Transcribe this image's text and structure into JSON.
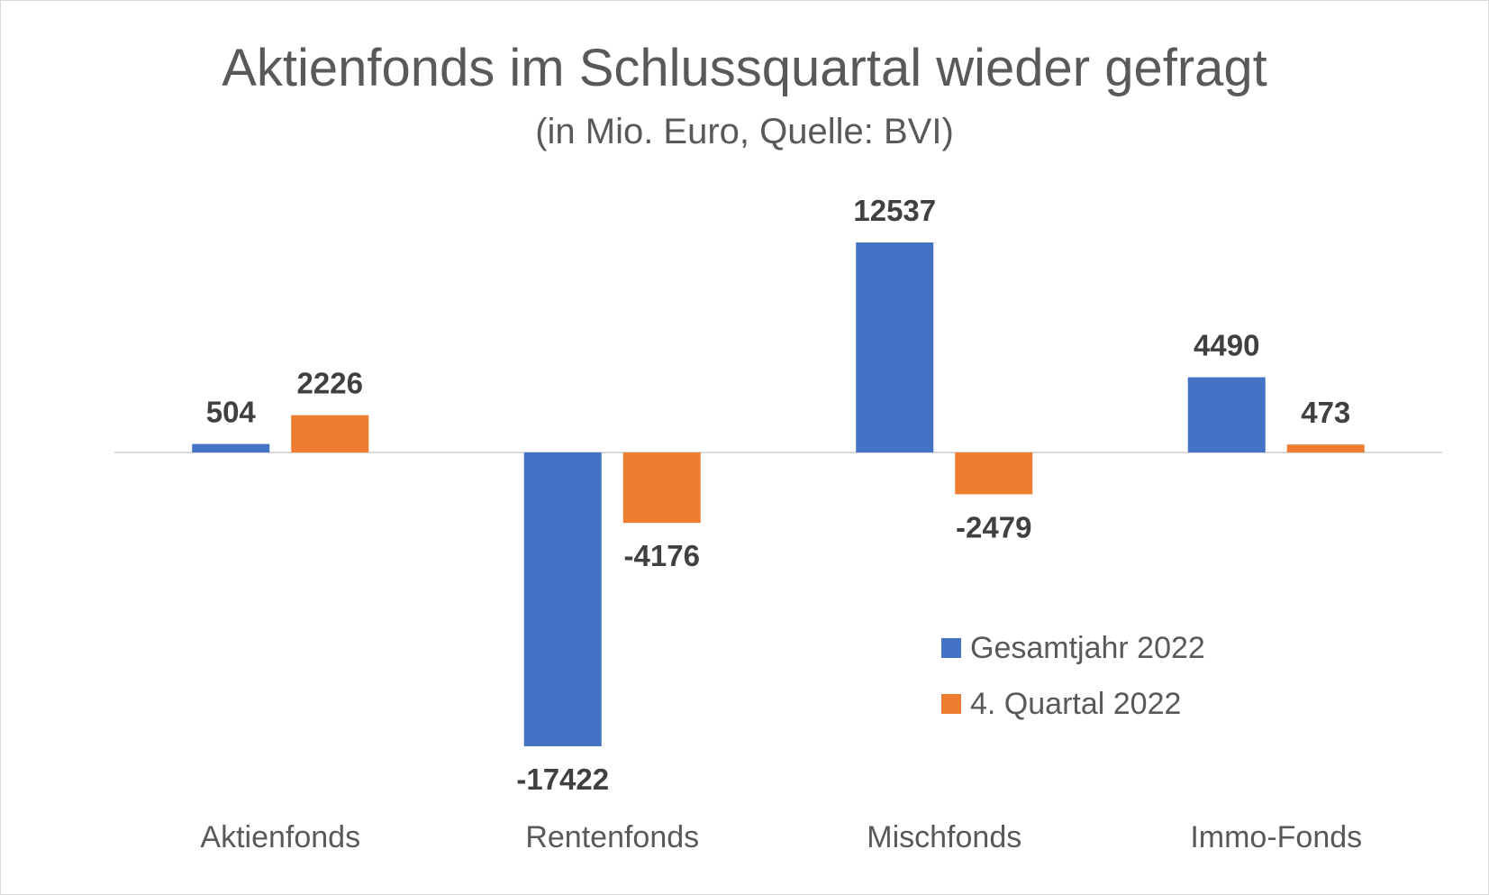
{
  "chart_data": {
    "type": "bar",
    "title": "Aktienfonds im Schlussquartal wieder gefragt",
    "subtitle": "(in Mio. Euro, Quelle: BVI)",
    "categories": [
      "Aktienfonds",
      "Rentenfonds",
      "Mischfonds",
      "Immo-Fonds"
    ],
    "series": [
      {
        "name": "Gesamtjahr 2022",
        "values": [
          504,
          -17422,
          12537,
          4490
        ],
        "color": "#4472C4"
      },
      {
        "name": "4. Quartal 2022",
        "values": [
          2226,
          -4176,
          -2479,
          473
        ],
        "color": "#ED7D31"
      }
    ],
    "ylim": [
      -17422,
      12537
    ],
    "grid": false,
    "legend": "bottom-right",
    "xlabel": "",
    "ylabel": ""
  }
}
